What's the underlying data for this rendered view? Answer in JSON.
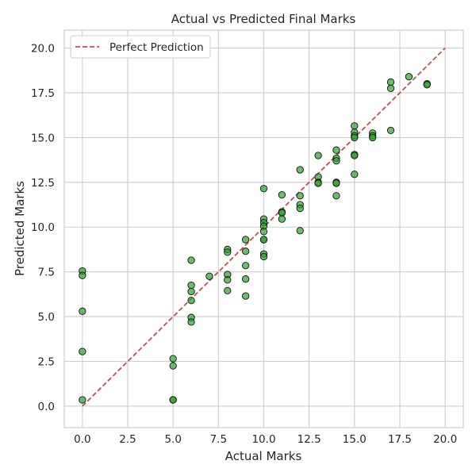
{
  "chart_data": {
    "type": "scatter",
    "title": "Actual vs Predicted Final Marks",
    "xlabel": "Actual Marks",
    "ylabel": "Predicted Marks",
    "xlim": [
      -1,
      21
    ],
    "ylim": [
      -1.2,
      21
    ],
    "xticks": [
      0.0,
      2.5,
      5.0,
      7.5,
      10.0,
      12.5,
      15.0,
      17.5,
      20.0
    ],
    "xtick_labels": [
      "0.0",
      "2.5",
      "5.0",
      "7.5",
      "10.0",
      "12.5",
      "15.0",
      "17.5",
      "20.0"
    ],
    "yticks": [
      0.0,
      2.5,
      5.0,
      7.5,
      10.0,
      12.5,
      15.0,
      17.5,
      20.0
    ],
    "ytick_labels": [
      "0.0",
      "2.5",
      "5.0",
      "7.5",
      "10.0",
      "12.5",
      "15.0",
      "17.5",
      "20.0"
    ],
    "grid": true,
    "legend_position": "top-left",
    "colors": {
      "point_fill": "#2ca02c",
      "point_edge": "#111111",
      "reference_line": "#c44e52",
      "grid": "#cccccc",
      "spine": "#cccccc"
    },
    "reference_line": {
      "name": "Perfect Prediction",
      "x": [
        0,
        20
      ],
      "y": [
        0,
        20
      ],
      "style": "dashed"
    },
    "points": [
      {
        "x": 0,
        "y": 7.55
      },
      {
        "x": 0,
        "y": 7.3
      },
      {
        "x": 0,
        "y": 5.3
      },
      {
        "x": 0,
        "y": 3.05
      },
      {
        "x": 0,
        "y": 0.35
      },
      {
        "x": 5,
        "y": 2.65
      },
      {
        "x": 5,
        "y": 2.25
      },
      {
        "x": 5,
        "y": 0.35
      },
      {
        "x": 5,
        "y": 0.35
      },
      {
        "x": 6,
        "y": 8.15
      },
      {
        "x": 6,
        "y": 6.75
      },
      {
        "x": 6,
        "y": 6.4
      },
      {
        "x": 6,
        "y": 5.9
      },
      {
        "x": 6,
        "y": 4.95
      },
      {
        "x": 6,
        "y": 4.7
      },
      {
        "x": 7,
        "y": 7.25
      },
      {
        "x": 8,
        "y": 8.75
      },
      {
        "x": 8,
        "y": 8.6
      },
      {
        "x": 8,
        "y": 7.35
      },
      {
        "x": 8,
        "y": 7.05
      },
      {
        "x": 8,
        "y": 6.45
      },
      {
        "x": 9,
        "y": 9.3
      },
      {
        "x": 9,
        "y": 8.65
      },
      {
        "x": 9,
        "y": 7.85
      },
      {
        "x": 9,
        "y": 7.1
      },
      {
        "x": 9,
        "y": 6.15
      },
      {
        "x": 10,
        "y": 12.15
      },
      {
        "x": 10,
        "y": 10.45
      },
      {
        "x": 10,
        "y": 10.25
      },
      {
        "x": 10,
        "y": 10.05
      },
      {
        "x": 10,
        "y": 9.75
      },
      {
        "x": 10,
        "y": 9.3
      },
      {
        "x": 10,
        "y": 9.3
      },
      {
        "x": 10,
        "y": 8.5
      },
      {
        "x": 10,
        "y": 8.35
      },
      {
        "x": 11,
        "y": 11.8
      },
      {
        "x": 11,
        "y": 10.85
      },
      {
        "x": 11,
        "y": 10.8
      },
      {
        "x": 11,
        "y": 10.45
      },
      {
        "x": 12,
        "y": 13.2
      },
      {
        "x": 12,
        "y": 11.75
      },
      {
        "x": 12,
        "y": 11.25
      },
      {
        "x": 12,
        "y": 11.05
      },
      {
        "x": 12,
        "y": 9.8
      },
      {
        "x": 13,
        "y": 14.0
      },
      {
        "x": 13,
        "y": 12.8
      },
      {
        "x": 13,
        "y": 12.5
      },
      {
        "x": 13,
        "y": 12.45
      },
      {
        "x": 14,
        "y": 14.3
      },
      {
        "x": 14,
        "y": 13.85
      },
      {
        "x": 14,
        "y": 13.7
      },
      {
        "x": 14,
        "y": 12.5
      },
      {
        "x": 14,
        "y": 12.45
      },
      {
        "x": 14,
        "y": 11.75
      },
      {
        "x": 15,
        "y": 15.65
      },
      {
        "x": 15,
        "y": 15.3
      },
      {
        "x": 15,
        "y": 15.1
      },
      {
        "x": 15,
        "y": 15.0
      },
      {
        "x": 15,
        "y": 14.05
      },
      {
        "x": 15,
        "y": 14.0
      },
      {
        "x": 15,
        "y": 12.95
      },
      {
        "x": 16,
        "y": 15.25
      },
      {
        "x": 16,
        "y": 15.1
      },
      {
        "x": 16,
        "y": 15.0
      },
      {
        "x": 17,
        "y": 18.1
      },
      {
        "x": 17,
        "y": 17.75
      },
      {
        "x": 17,
        "y": 15.4
      },
      {
        "x": 18,
        "y": 18.4
      },
      {
        "x": 19,
        "y": 18.0
      },
      {
        "x": 19,
        "y": 17.95
      }
    ]
  }
}
